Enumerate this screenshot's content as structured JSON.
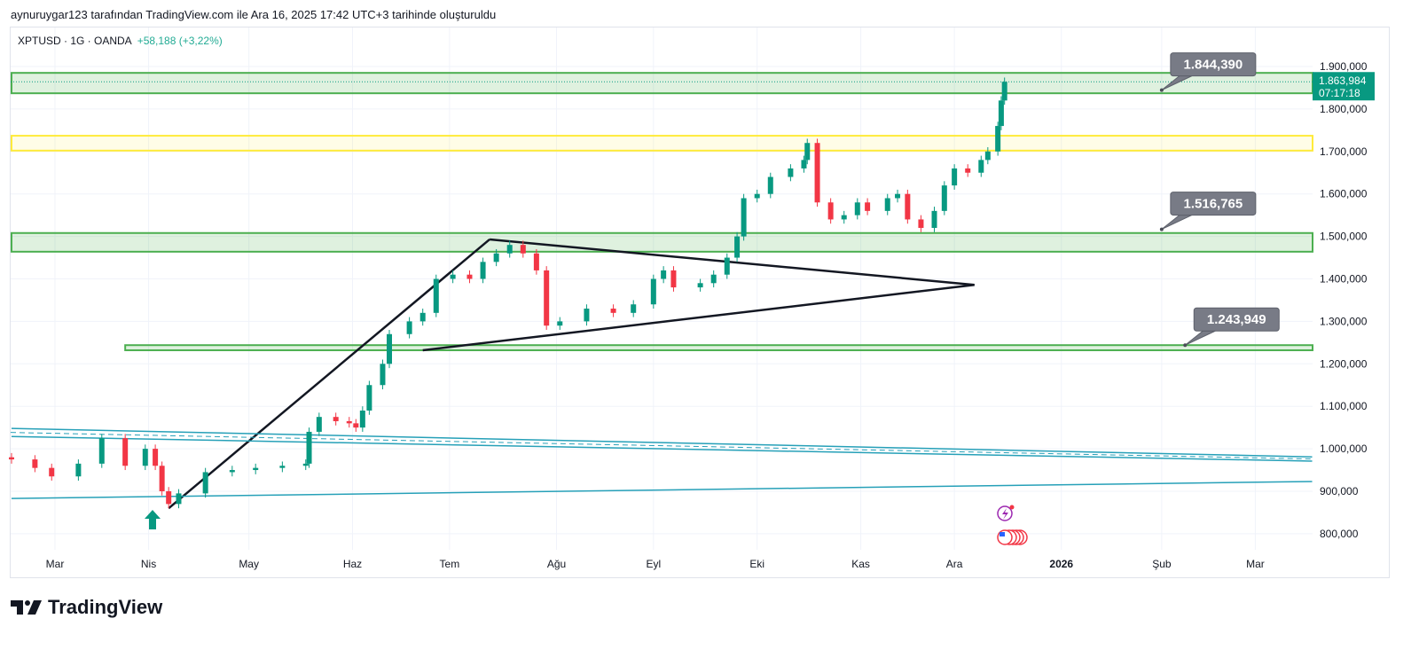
{
  "header": {
    "caption": "aynuruygar123 tarafından TradingView.com ile Ara 16, 2025 17:42 UTC+3 tarihinde oluşturuldu"
  },
  "legend": {
    "symbol": "XPTUSD · 1G · OANDA",
    "change": "+58,188 (+3,22%)"
  },
  "last_price": {
    "value": "1.863,984",
    "countdown": "07:17:18"
  },
  "callouts": [
    {
      "label": "1.844,390",
      "day": 331,
      "price": 1844.39
    },
    {
      "label": "1.516,765",
      "day": 331,
      "price": 1516.765
    },
    {
      "label": "1.243,949",
      "day": 338,
      "price": 1243.949
    }
  ],
  "brand": {
    "name": "TradingView"
  },
  "colors": {
    "up": "#089981",
    "down": "#f23645",
    "zone_green": "#4caf50",
    "zone_yellow": "#ffeb3b",
    "channel": "#26a0b8",
    "accent": "#089981"
  },
  "chart_data": {
    "type": "candlestick",
    "title": "XPTUSD · 1G · OANDA",
    "x_unit": "days since 2025-03-01",
    "xlim": [
      -13,
      376
    ],
    "ylim": [
      762,
      1994
    ],
    "y_ticks": [
      {
        "v": 1900,
        "label": "1.900,000"
      },
      {
        "v": 1800,
        "label": "1.800,000"
      },
      {
        "v": 1700,
        "label": "1.700,000"
      },
      {
        "v": 1600,
        "label": "1.600,000"
      },
      {
        "v": 1500,
        "label": "1.500,000"
      },
      {
        "v": 1400,
        "label": "1.400,000"
      },
      {
        "v": 1300,
        "label": "1.300,000"
      },
      {
        "v": 1200,
        "label": "1.200,000"
      },
      {
        "v": 1100,
        "label": "1.100,000"
      },
      {
        "v": 1000,
        "label": "1.000,000"
      },
      {
        "v": 900,
        "label": "900,000"
      },
      {
        "v": 800,
        "label": "800,000"
      }
    ],
    "x_ticks": [
      {
        "d": 0,
        "label": "Mar"
      },
      {
        "d": 28,
        "label": "Nis"
      },
      {
        "d": 58,
        "label": "May"
      },
      {
        "d": 89,
        "label": "Haz"
      },
      {
        "d": 118,
        "label": "Tem"
      },
      {
        "d": 150,
        "label": "Ağu"
      },
      {
        "d": 179,
        "label": "Eyl"
      },
      {
        "d": 210,
        "label": "Eki"
      },
      {
        "d": 241,
        "label": "Kas"
      },
      {
        "d": 269,
        "label": "Ara"
      },
      {
        "d": 301,
        "label": "2026",
        "bold": true
      },
      {
        "d": 331,
        "label": "Şub"
      },
      {
        "d": 359,
        "label": "Mar"
      }
    ],
    "closes": [
      [
        -13,
        975
      ],
      [
        -6,
        955
      ],
      [
        -1,
        935
      ],
      [
        7,
        965
      ],
      [
        14,
        1025
      ],
      [
        21,
        960
      ],
      [
        27,
        1000
      ],
      [
        30,
        960
      ],
      [
        32,
        900
      ],
      [
        34,
        870
      ],
      [
        37,
        895
      ],
      [
        45,
        945
      ],
      [
        53,
        950
      ],
      [
        60,
        955
      ],
      [
        68,
        960
      ],
      [
        75,
        965
      ],
      [
        76,
        1040
      ],
      [
        79,
        1075
      ],
      [
        84,
        1065
      ],
      [
        88,
        1060
      ],
      [
        90,
        1050
      ],
      [
        92,
        1090
      ],
      [
        94,
        1150
      ],
      [
        98,
        1200
      ],
      [
        100,
        1270
      ],
      [
        106,
        1300
      ],
      [
        110,
        1320
      ],
      [
        114,
        1400
      ],
      [
        119,
        1410
      ],
      [
        124,
        1400
      ],
      [
        128,
        1440
      ],
      [
        132,
        1460
      ],
      [
        136,
        1480
      ],
      [
        140,
        1460
      ],
      [
        144,
        1420
      ],
      [
        147,
        1290
      ],
      [
        151,
        1300
      ],
      [
        159,
        1330
      ],
      [
        167,
        1320
      ],
      [
        173,
        1340
      ],
      [
        179,
        1400
      ],
      [
        182,
        1420
      ],
      [
        185,
        1380
      ],
      [
        193,
        1390
      ],
      [
        197,
        1410
      ],
      [
        201,
        1450
      ],
      [
        204,
        1500
      ],
      [
        206,
        1590
      ],
      [
        210,
        1600
      ],
      [
        214,
        1640
      ],
      [
        220,
        1660
      ],
      [
        224,
        1680
      ],
      [
        225,
        1720
      ],
      [
        228,
        1580
      ],
      [
        232,
        1540
      ],
      [
        236,
        1550
      ],
      [
        240,
        1580
      ],
      [
        243,
        1560
      ],
      [
        249,
        1590
      ],
      [
        252,
        1600
      ],
      [
        255,
        1540
      ],
      [
        259,
        1520
      ],
      [
        263,
        1560
      ],
      [
        266,
        1620
      ],
      [
        269,
        1660
      ],
      [
        273,
        1650
      ],
      [
        277,
        1680
      ],
      [
        279,
        1700
      ],
      [
        282,
        1760
      ],
      [
        283,
        1820
      ],
      [
        284,
        1864
      ]
    ],
    "zones": [
      {
        "name": "resistance-zone",
        "color": "green",
        "from": 1837,
        "to": 1885,
        "start": -13
      },
      {
        "name": "yellow-zone",
        "color": "yellow",
        "from": 1702,
        "to": 1737,
        "start": -13
      },
      {
        "name": "support-zone",
        "color": "green",
        "from": 1464,
        "to": 1508,
        "start": -13
      },
      {
        "name": "lower-zone",
        "color": "green",
        "from": 1232,
        "to": 1244,
        "start": 21
      }
    ],
    "trendlines": [
      {
        "name": "uptrend-line",
        "color": "#131722",
        "points": [
          [
            34,
            860
          ],
          [
            130,
            1493
          ]
        ]
      },
      {
        "name": "triangle-upper",
        "color": "#131722",
        "points": [
          [
            130,
            1493
          ],
          [
            275,
            1386
          ]
        ]
      },
      {
        "name": "triangle-lower",
        "color": "#131722",
        "points": [
          [
            110,
            1232
          ],
          [
            275,
            1386
          ]
        ]
      },
      {
        "name": "channel-top",
        "color": "#26a0b8",
        "points": [
          [
            -13,
            1048
          ],
          [
            376,
            981
          ]
        ]
      },
      {
        "name": "channel-bottom",
        "color": "#26a0b8",
        "points": [
          [
            -13,
            1029
          ],
          [
            376,
            971
          ]
        ]
      },
      {
        "name": "support-line",
        "color": "#26a0b8",
        "points": [
          [
            -13,
            883
          ],
          [
            376,
            923
          ]
        ]
      }
    ]
  }
}
